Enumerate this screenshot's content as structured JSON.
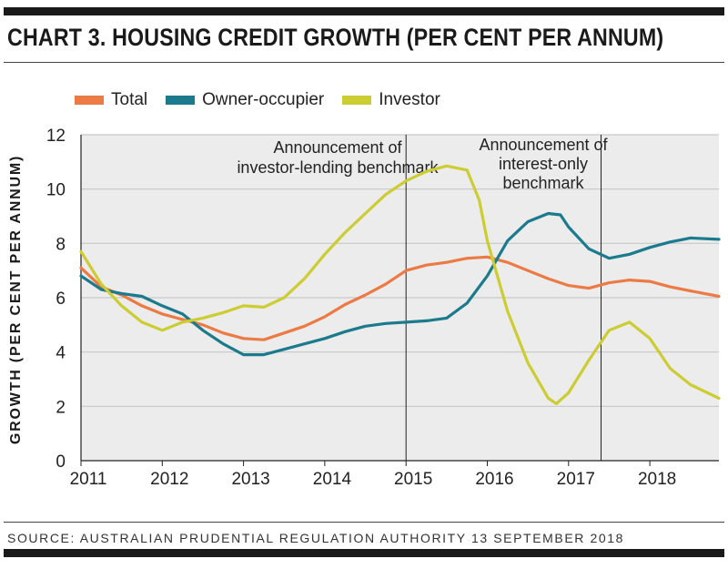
{
  "title": "CHART 3. HOUSING CREDIT GROWTH (PER CENT PER ANNUM)",
  "source": "SOURCE: AUSTRALIAN PRUDENTIAL REGULATION AUTHORITY 13 SEPTEMBER 2018",
  "colors": {
    "total": "#ec7a45",
    "owner": "#1b7a8c",
    "investor": "#cccc33",
    "plot_bg": "#ececec",
    "grid": "#c8c8c8"
  },
  "chart_data": {
    "type": "line",
    "title": "CHART 3. HOUSING CREDIT GROWTH (PER CENT PER ANNUM)",
    "xlabel": "",
    "ylabel": "GROWTH (PER CENT PER ANNUM)",
    "xlim": [
      2011.0,
      2018.85
    ],
    "ylim": [
      0,
      12
    ],
    "grid": true,
    "legend_position": "top-left",
    "x_ticks": [
      2011,
      2012,
      2013,
      2014,
      2015,
      2016,
      2017,
      2018
    ],
    "y_ticks": [
      0,
      2,
      4,
      6,
      8,
      10,
      12
    ],
    "annotations": [
      {
        "x": 2015.0,
        "lines": [
          "Announcement of",
          "investor-lending benchmark"
        ]
      },
      {
        "x": 2017.4,
        "lines": [
          "Announcement of",
          "interest-only",
          "benchmark"
        ]
      }
    ],
    "series": [
      {
        "name": "Total",
        "key": "total",
        "points": [
          [
            2011.0,
            7.1
          ],
          [
            2011.25,
            6.4
          ],
          [
            2011.5,
            6.1
          ],
          [
            2011.75,
            5.7
          ],
          [
            2012.0,
            5.4
          ],
          [
            2012.25,
            5.2
          ],
          [
            2012.5,
            5.0
          ],
          [
            2012.75,
            4.7
          ],
          [
            2013.0,
            4.5
          ],
          [
            2013.25,
            4.45
          ],
          [
            2013.5,
            4.7
          ],
          [
            2013.75,
            4.95
          ],
          [
            2014.0,
            5.3
          ],
          [
            2014.25,
            5.75
          ],
          [
            2014.5,
            6.1
          ],
          [
            2014.75,
            6.5
          ],
          [
            2015.0,
            7.0
          ],
          [
            2015.25,
            7.2
          ],
          [
            2015.5,
            7.3
          ],
          [
            2015.75,
            7.45
          ],
          [
            2016.0,
            7.5
          ],
          [
            2016.25,
            7.3
          ],
          [
            2016.5,
            7.0
          ],
          [
            2016.75,
            6.7
          ],
          [
            2017.0,
            6.45
          ],
          [
            2017.25,
            6.35
          ],
          [
            2017.5,
            6.55
          ],
          [
            2017.75,
            6.65
          ],
          [
            2018.0,
            6.6
          ],
          [
            2018.25,
            6.4
          ],
          [
            2018.5,
            6.25
          ],
          [
            2018.85,
            6.05
          ]
        ]
      },
      {
        "name": "Owner-occupier",
        "key": "owner",
        "points": [
          [
            2011.0,
            6.8
          ],
          [
            2011.25,
            6.3
          ],
          [
            2011.5,
            6.15
          ],
          [
            2011.75,
            6.05
          ],
          [
            2012.0,
            5.7
          ],
          [
            2012.25,
            5.4
          ],
          [
            2012.5,
            4.8
          ],
          [
            2012.75,
            4.3
          ],
          [
            2013.0,
            3.9
          ],
          [
            2013.25,
            3.9
          ],
          [
            2013.5,
            4.1
          ],
          [
            2013.75,
            4.3
          ],
          [
            2014.0,
            4.5
          ],
          [
            2014.25,
            4.75
          ],
          [
            2014.5,
            4.95
          ],
          [
            2014.75,
            5.05
          ],
          [
            2015.0,
            5.1
          ],
          [
            2015.25,
            5.15
          ],
          [
            2015.5,
            5.25
          ],
          [
            2015.75,
            5.8
          ],
          [
            2016.0,
            6.8
          ],
          [
            2016.25,
            8.1
          ],
          [
            2016.5,
            8.8
          ],
          [
            2016.75,
            9.1
          ],
          [
            2016.9,
            9.05
          ],
          [
            2017.0,
            8.6
          ],
          [
            2017.25,
            7.8
          ],
          [
            2017.5,
            7.45
          ],
          [
            2017.75,
            7.6
          ],
          [
            2018.0,
            7.85
          ],
          [
            2018.25,
            8.05
          ],
          [
            2018.5,
            8.2
          ],
          [
            2018.85,
            8.15
          ]
        ]
      },
      {
        "name": "Investor",
        "key": "investor",
        "points": [
          [
            2011.0,
            7.7
          ],
          [
            2011.25,
            6.5
          ],
          [
            2011.5,
            5.7
          ],
          [
            2011.75,
            5.1
          ],
          [
            2012.0,
            4.8
          ],
          [
            2012.25,
            5.1
          ],
          [
            2012.5,
            5.25
          ],
          [
            2012.75,
            5.45
          ],
          [
            2013.0,
            5.7
          ],
          [
            2013.25,
            5.65
          ],
          [
            2013.5,
            6.0
          ],
          [
            2013.75,
            6.7
          ],
          [
            2014.0,
            7.6
          ],
          [
            2014.25,
            8.4
          ],
          [
            2014.5,
            9.1
          ],
          [
            2014.75,
            9.8
          ],
          [
            2015.0,
            10.3
          ],
          [
            2015.25,
            10.65
          ],
          [
            2015.5,
            10.85
          ],
          [
            2015.75,
            10.7
          ],
          [
            2015.9,
            9.6
          ],
          [
            2016.0,
            8.1
          ],
          [
            2016.25,
            5.5
          ],
          [
            2016.5,
            3.6
          ],
          [
            2016.75,
            2.3
          ],
          [
            2016.85,
            2.1
          ],
          [
            2017.0,
            2.5
          ],
          [
            2017.25,
            3.7
          ],
          [
            2017.5,
            4.8
          ],
          [
            2017.75,
            5.1
          ],
          [
            2018.0,
            4.5
          ],
          [
            2018.25,
            3.4
          ],
          [
            2018.5,
            2.8
          ],
          [
            2018.85,
            2.3
          ]
        ]
      }
    ]
  }
}
